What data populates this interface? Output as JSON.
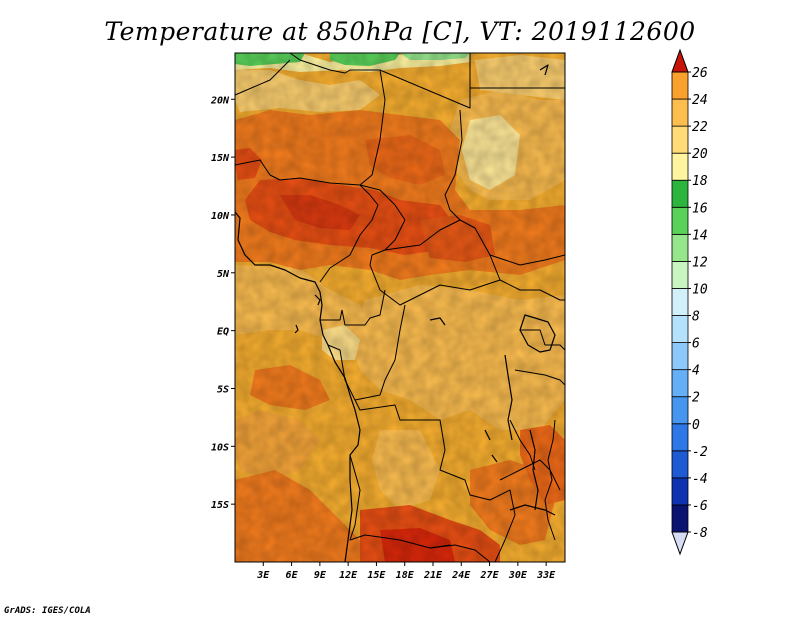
{
  "title": "Temperature at 850hPa [C], VT: 2019112600",
  "credit": "GrADS: IGES/COLA",
  "map": {
    "field": "Temperature at 850hPa",
    "units": "C",
    "valid_time": "2019112600",
    "lon_range": [
      0,
      35
    ],
    "lat_range": [
      -20,
      24
    ],
    "x_ticks": [
      {
        "value": 3,
        "label": "3E"
      },
      {
        "value": 6,
        "label": "6E"
      },
      {
        "value": 9,
        "label": "9E"
      },
      {
        "value": 12,
        "label": "12E"
      },
      {
        "value": 15,
        "label": "15E"
      },
      {
        "value": 18,
        "label": "18E"
      },
      {
        "value": 21,
        "label": "21E"
      },
      {
        "value": 24,
        "label": "24E"
      },
      {
        "value": 27,
        "label": "27E"
      },
      {
        "value": 30,
        "label": "30E"
      },
      {
        "value": 33,
        "label": "33E"
      }
    ],
    "y_ticks": [
      {
        "value": 20,
        "label": "20N"
      },
      {
        "value": 15,
        "label": "15N"
      },
      {
        "value": 10,
        "label": "10N"
      },
      {
        "value": 5,
        "label": "5N"
      },
      {
        "value": 0,
        "label": "EQ"
      },
      {
        "value": -5,
        "label": "5S"
      },
      {
        "value": -10,
        "label": "10S"
      },
      {
        "value": -15,
        "label": "15S"
      }
    ]
  },
  "colorbar": {
    "levels": [
      {
        "label": "-8",
        "color": "#0a1370"
      },
      {
        "label": "-6",
        "color": "#0f32b0"
      },
      {
        "label": "-4",
        "color": "#1e5ad2"
      },
      {
        "label": "-2",
        "color": "#2d78e6"
      },
      {
        "label": "0",
        "color": "#4696f0"
      },
      {
        "label": "2",
        "color": "#64aff5"
      },
      {
        "label": "4",
        "color": "#8cc8fa"
      },
      {
        "label": "6",
        "color": "#b4e1fc"
      },
      {
        "label": "8",
        "color": "#d2f0fa"
      },
      {
        "label": "10",
        "color": "#c8f5c0"
      },
      {
        "label": "12",
        "color": "#96e68c"
      },
      {
        "label": "14",
        "color": "#5ad25a"
      },
      {
        "label": "16",
        "color": "#2db43c"
      },
      {
        "label": "18",
        "color": "#fff5a0"
      },
      {
        "label": "20",
        "color": "#ffdc78"
      },
      {
        "label": "22",
        "color": "#fdbe50"
      },
      {
        "label": "24",
        "color": "#f9a02d"
      },
      {
        "label": "26",
        "color": "#f57d1e"
      }
    ],
    "low_color": "#d7dcf5",
    "top_colors": [
      "#eb5014",
      "#dc280a",
      "#c81408"
    ]
  }
}
